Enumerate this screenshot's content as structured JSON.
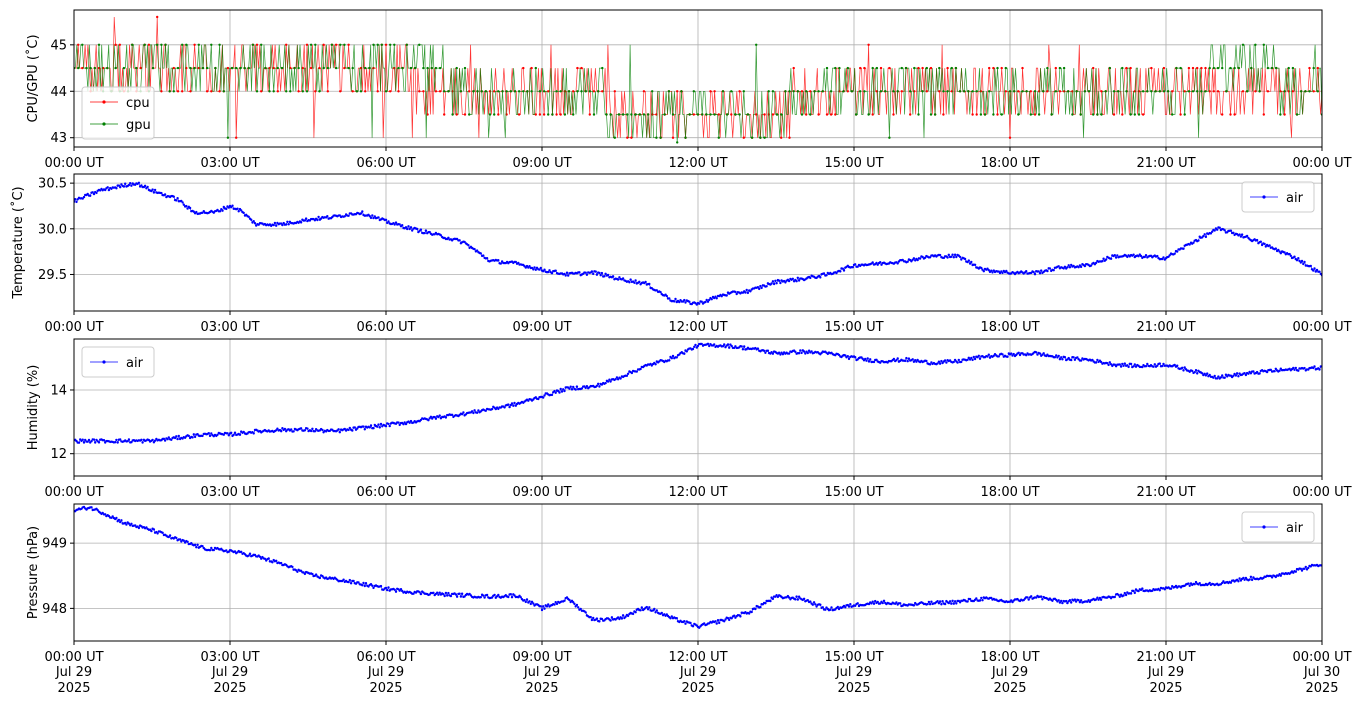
{
  "chart_data": [
    {
      "type": "line",
      "ylabel": "CPU/GPU (˚C)",
      "ylim": [
        42.8,
        45.75
      ],
      "yticks": [
        43,
        44,
        45
      ],
      "xlim_hours": [
        0,
        24
      ],
      "xtick_labels": [
        "00:00 UT",
        "03:00 UT",
        "06:00 UT",
        "09:00 UT",
        "12:00 UT",
        "15:00 UT",
        "18:00 UT",
        "21:00 UT",
        "00:00 UT"
      ],
      "grid": true,
      "legend": "lower-left",
      "series": [
        {
          "name": "cpu",
          "color": "#ff0000",
          "x": [
            0,
            1,
            2,
            3,
            4,
            5,
            6,
            7,
            8,
            9,
            10,
            11,
            12,
            13,
            14,
            15,
            16,
            17,
            18,
            19,
            20,
            21,
            22,
            23,
            24
          ],
          "values": [
            44.5,
            44.5,
            44.5,
            44.3,
            44.3,
            44.3,
            44.3,
            44.2,
            43.9,
            43.8,
            43.8,
            43.6,
            43.3,
            43.5,
            43.8,
            43.9,
            43.9,
            43.9,
            43.9,
            43.9,
            43.8,
            43.9,
            44.0,
            44.0,
            43.8
          ]
        },
        {
          "name": "gpu",
          "color": "#008000",
          "x": [
            0,
            1,
            2,
            3,
            4,
            5,
            6,
            7,
            8,
            9,
            10,
            11,
            12,
            13,
            14,
            15,
            16,
            17,
            18,
            19,
            20,
            21,
            22,
            23,
            24
          ],
          "values": [
            44.5,
            44.6,
            44.4,
            44.4,
            44.4,
            44.4,
            44.4,
            44.3,
            43.9,
            43.9,
            43.8,
            43.6,
            43.3,
            43.6,
            43.8,
            44.0,
            44.0,
            44.0,
            43.9,
            43.9,
            43.9,
            44.0,
            44.3,
            44.3,
            43.9
          ]
        }
      ]
    },
    {
      "type": "line",
      "ylabel": "Temperature (˚C)",
      "ylim": [
        29.1,
        30.6
      ],
      "yticks": [
        29.5,
        30.0,
        30.5
      ],
      "ytick_labels": [
        "29.5",
        "30.0",
        "30.5"
      ],
      "xlim_hours": [
        0,
        24
      ],
      "xtick_labels": [
        "00:00 UT",
        "03:00 UT",
        "06:00 UT",
        "09:00 UT",
        "12:00 UT",
        "15:00 UT",
        "18:00 UT",
        "21:00 UT",
        "00:00 UT"
      ],
      "grid": true,
      "legend": "upper-right",
      "series": [
        {
          "name": "air",
          "color": "#0000ff",
          "x": [
            0,
            0.5,
            1,
            1.2,
            1.5,
            2,
            2.3,
            2.7,
            3,
            3.2,
            3.5,
            4,
            4.5,
            5,
            5.5,
            6,
            6.5,
            7,
            7.5,
            8,
            8.5,
            9,
            9.5,
            10,
            10.5,
            11,
            11.5,
            12,
            12.5,
            13,
            13.5,
            14,
            14.5,
            15,
            15.5,
            16,
            16.5,
            17,
            17.5,
            18,
            18.5,
            19,
            19.5,
            20,
            20.5,
            21,
            21.5,
            22,
            22.5,
            23,
            23.5,
            24
          ],
          "values": [
            30.3,
            30.42,
            30.48,
            30.5,
            30.42,
            30.32,
            30.18,
            30.18,
            30.25,
            30.2,
            30.05,
            30.05,
            30.1,
            30.13,
            30.18,
            30.08,
            30.0,
            29.93,
            29.85,
            29.65,
            29.62,
            29.55,
            29.5,
            29.52,
            29.45,
            29.4,
            29.22,
            29.18,
            29.28,
            29.32,
            29.42,
            29.45,
            29.5,
            29.6,
            29.62,
            29.65,
            29.7,
            29.7,
            29.55,
            29.52,
            29.52,
            29.58,
            29.6,
            29.7,
            29.7,
            29.68,
            29.85,
            30.0,
            29.92,
            29.8,
            29.68,
            29.5
          ]
        }
      ]
    },
    {
      "type": "line",
      "ylabel": "Humidity (%)",
      "ylim": [
        11.3,
        15.6
      ],
      "yticks": [
        12,
        14
      ],
      "xlim_hours": [
        0,
        24
      ],
      "xtick_labels": [
        "00:00 UT",
        "03:00 UT",
        "06:00 UT",
        "09:00 UT",
        "12:00 UT",
        "15:00 UT",
        "18:00 UT",
        "21:00 UT",
        "00:00 UT"
      ],
      "grid": true,
      "legend": "upper-left",
      "series": [
        {
          "name": "air",
          "color": "#0000ff",
          "x": [
            0,
            1,
            1.5,
            2,
            2.5,
            3,
            3.5,
            4,
            4.5,
            5,
            5.5,
            6,
            6.5,
            7,
            7.5,
            8,
            8.5,
            9,
            9.5,
            10,
            10.5,
            11,
            11.5,
            12,
            12.5,
            13,
            13.5,
            14,
            14.5,
            15,
            15.5,
            16,
            16.5,
            17,
            17.5,
            18,
            18.5,
            19,
            19.5,
            20,
            20.5,
            21,
            21.5,
            22,
            22.5,
            23,
            23.5,
            24
          ],
          "values": [
            12.4,
            12.4,
            12.4,
            12.5,
            12.6,
            12.6,
            12.7,
            12.75,
            12.75,
            12.7,
            12.8,
            12.9,
            13.0,
            13.15,
            13.25,
            13.4,
            13.55,
            13.8,
            14.05,
            14.1,
            14.4,
            14.75,
            15.0,
            15.4,
            15.4,
            15.3,
            15.15,
            15.2,
            15.15,
            15.0,
            14.9,
            14.95,
            14.85,
            14.9,
            15.05,
            15.1,
            15.15,
            15.0,
            14.95,
            14.8,
            14.75,
            14.8,
            14.6,
            14.4,
            14.5,
            14.6,
            14.65,
            14.7
          ]
        }
      ]
    },
    {
      "type": "line",
      "ylabel": "Pressure (hPa)",
      "ylim": [
        947.5,
        949.6
      ],
      "yticks": [
        948,
        949
      ],
      "xlim_hours": [
        0,
        24
      ],
      "xtick_labels": [
        "00:00 UT",
        "03:00 UT",
        "06:00 UT",
        "09:00 UT",
        "12:00 UT",
        "15:00 UT",
        "18:00 UT",
        "21:00 UT",
        "00:00 UT"
      ],
      "xtick_dates": [
        "Jul 29",
        "Jul 29",
        "Jul 29",
        "Jul 29",
        "Jul 29",
        "Jul 29",
        "Jul 29",
        "Jul 29",
        "Jul 30"
      ],
      "xtick_years": [
        "2025",
        "2025",
        "2025",
        "2025",
        "2025",
        "2025",
        "2025",
        "2025",
        "2025"
      ],
      "grid": true,
      "legend": "upper-right",
      "series": [
        {
          "name": "air",
          "color": "#0000ff",
          "x": [
            0,
            0.3,
            0.6,
            1,
            1.5,
            2,
            2.5,
            3,
            3.5,
            4,
            4.5,
            5,
            5.5,
            6,
            6.5,
            7,
            7.5,
            8,
            8.5,
            9,
            9.5,
            10,
            10.5,
            11,
            11.5,
            12,
            12.5,
            13,
            13.5,
            14,
            14.5,
            15,
            15.5,
            16,
            16.5,
            17,
            17.5,
            18,
            18.5,
            19,
            19.5,
            20,
            20.5,
            21,
            21.5,
            22,
            22.5,
            23,
            23.5,
            24
          ],
          "values": [
            949.5,
            949.55,
            949.45,
            949.3,
            949.2,
            949.05,
            948.92,
            948.88,
            948.8,
            948.68,
            948.52,
            948.45,
            948.38,
            948.3,
            948.25,
            948.22,
            948.2,
            948.18,
            948.2,
            948.0,
            948.15,
            947.82,
            947.85,
            948.02,
            947.85,
            947.72,
            947.82,
            947.95,
            948.18,
            948.15,
            947.98,
            948.05,
            948.1,
            948.05,
            948.08,
            948.1,
            948.15,
            948.1,
            948.18,
            948.1,
            948.12,
            948.18,
            948.28,
            948.3,
            948.38,
            948.38,
            948.45,
            948.48,
            948.58,
            948.68
          ]
        }
      ]
    }
  ]
}
